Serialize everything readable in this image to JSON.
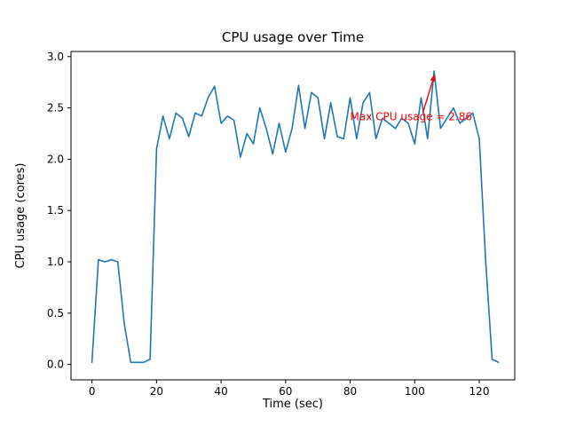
{
  "chart_data": {
    "type": "line",
    "title": "CPU usage over Time",
    "xlabel": "Time (sec)",
    "ylabel": "CPU usage (cores)",
    "line_color": "#1f77b4",
    "grid": false,
    "xlim": [
      -6.5,
      131
    ],
    "ylim": [
      -0.15,
      3.05
    ],
    "xticks": [
      0,
      20,
      40,
      60,
      80,
      100,
      120
    ],
    "yticks": [
      0.0,
      0.5,
      1.0,
      1.5,
      2.0,
      2.5,
      3.0
    ],
    "ytick_labels": [
      "0.0",
      "0.5",
      "1.0",
      "1.5",
      "2.0",
      "2.5",
      "3.0"
    ],
    "x": [
      0,
      2,
      4,
      6,
      8,
      10,
      12,
      14,
      16,
      18,
      20,
      22,
      24,
      26,
      28,
      30,
      32,
      34,
      36,
      38,
      40,
      42,
      44,
      46,
      48,
      50,
      52,
      54,
      56,
      58,
      60,
      62,
      64,
      66,
      68,
      70,
      72,
      74,
      76,
      78,
      80,
      82,
      84,
      86,
      88,
      90,
      92,
      94,
      96,
      98,
      100,
      102,
      104,
      106,
      108,
      110,
      112,
      114,
      116,
      118,
      120,
      122,
      124,
      126
    ],
    "values": [
      0.02,
      1.02,
      1.0,
      1.02,
      1.0,
      0.4,
      0.02,
      0.02,
      0.02,
      0.05,
      2.1,
      2.42,
      2.2,
      2.45,
      2.4,
      2.22,
      2.45,
      2.42,
      2.6,
      2.71,
      2.35,
      2.42,
      2.38,
      2.02,
      2.25,
      2.15,
      2.5,
      2.3,
      2.05,
      2.35,
      2.07,
      2.3,
      2.72,
      2.3,
      2.65,
      2.6,
      2.2,
      2.55,
      2.22,
      2.2,
      2.6,
      2.2,
      2.55,
      2.65,
      2.2,
      2.4,
      2.35,
      2.3,
      2.4,
      2.35,
      2.15,
      2.6,
      2.2,
      2.86,
      2.3,
      2.4,
      2.5,
      2.35,
      2.4,
      2.45,
      2.2,
      1.0,
      0.05,
      0.02
    ],
    "annotation": {
      "text": "Max CPU usage = 2.86",
      "color": "#ff0000",
      "max_value": 2.86,
      "max_time": 106,
      "text_xy": [
        80,
        2.38
      ],
      "arrow_from": [
        102.5,
        2.45
      ],
      "arrow_to": [
        106.2,
        2.83
      ]
    }
  }
}
